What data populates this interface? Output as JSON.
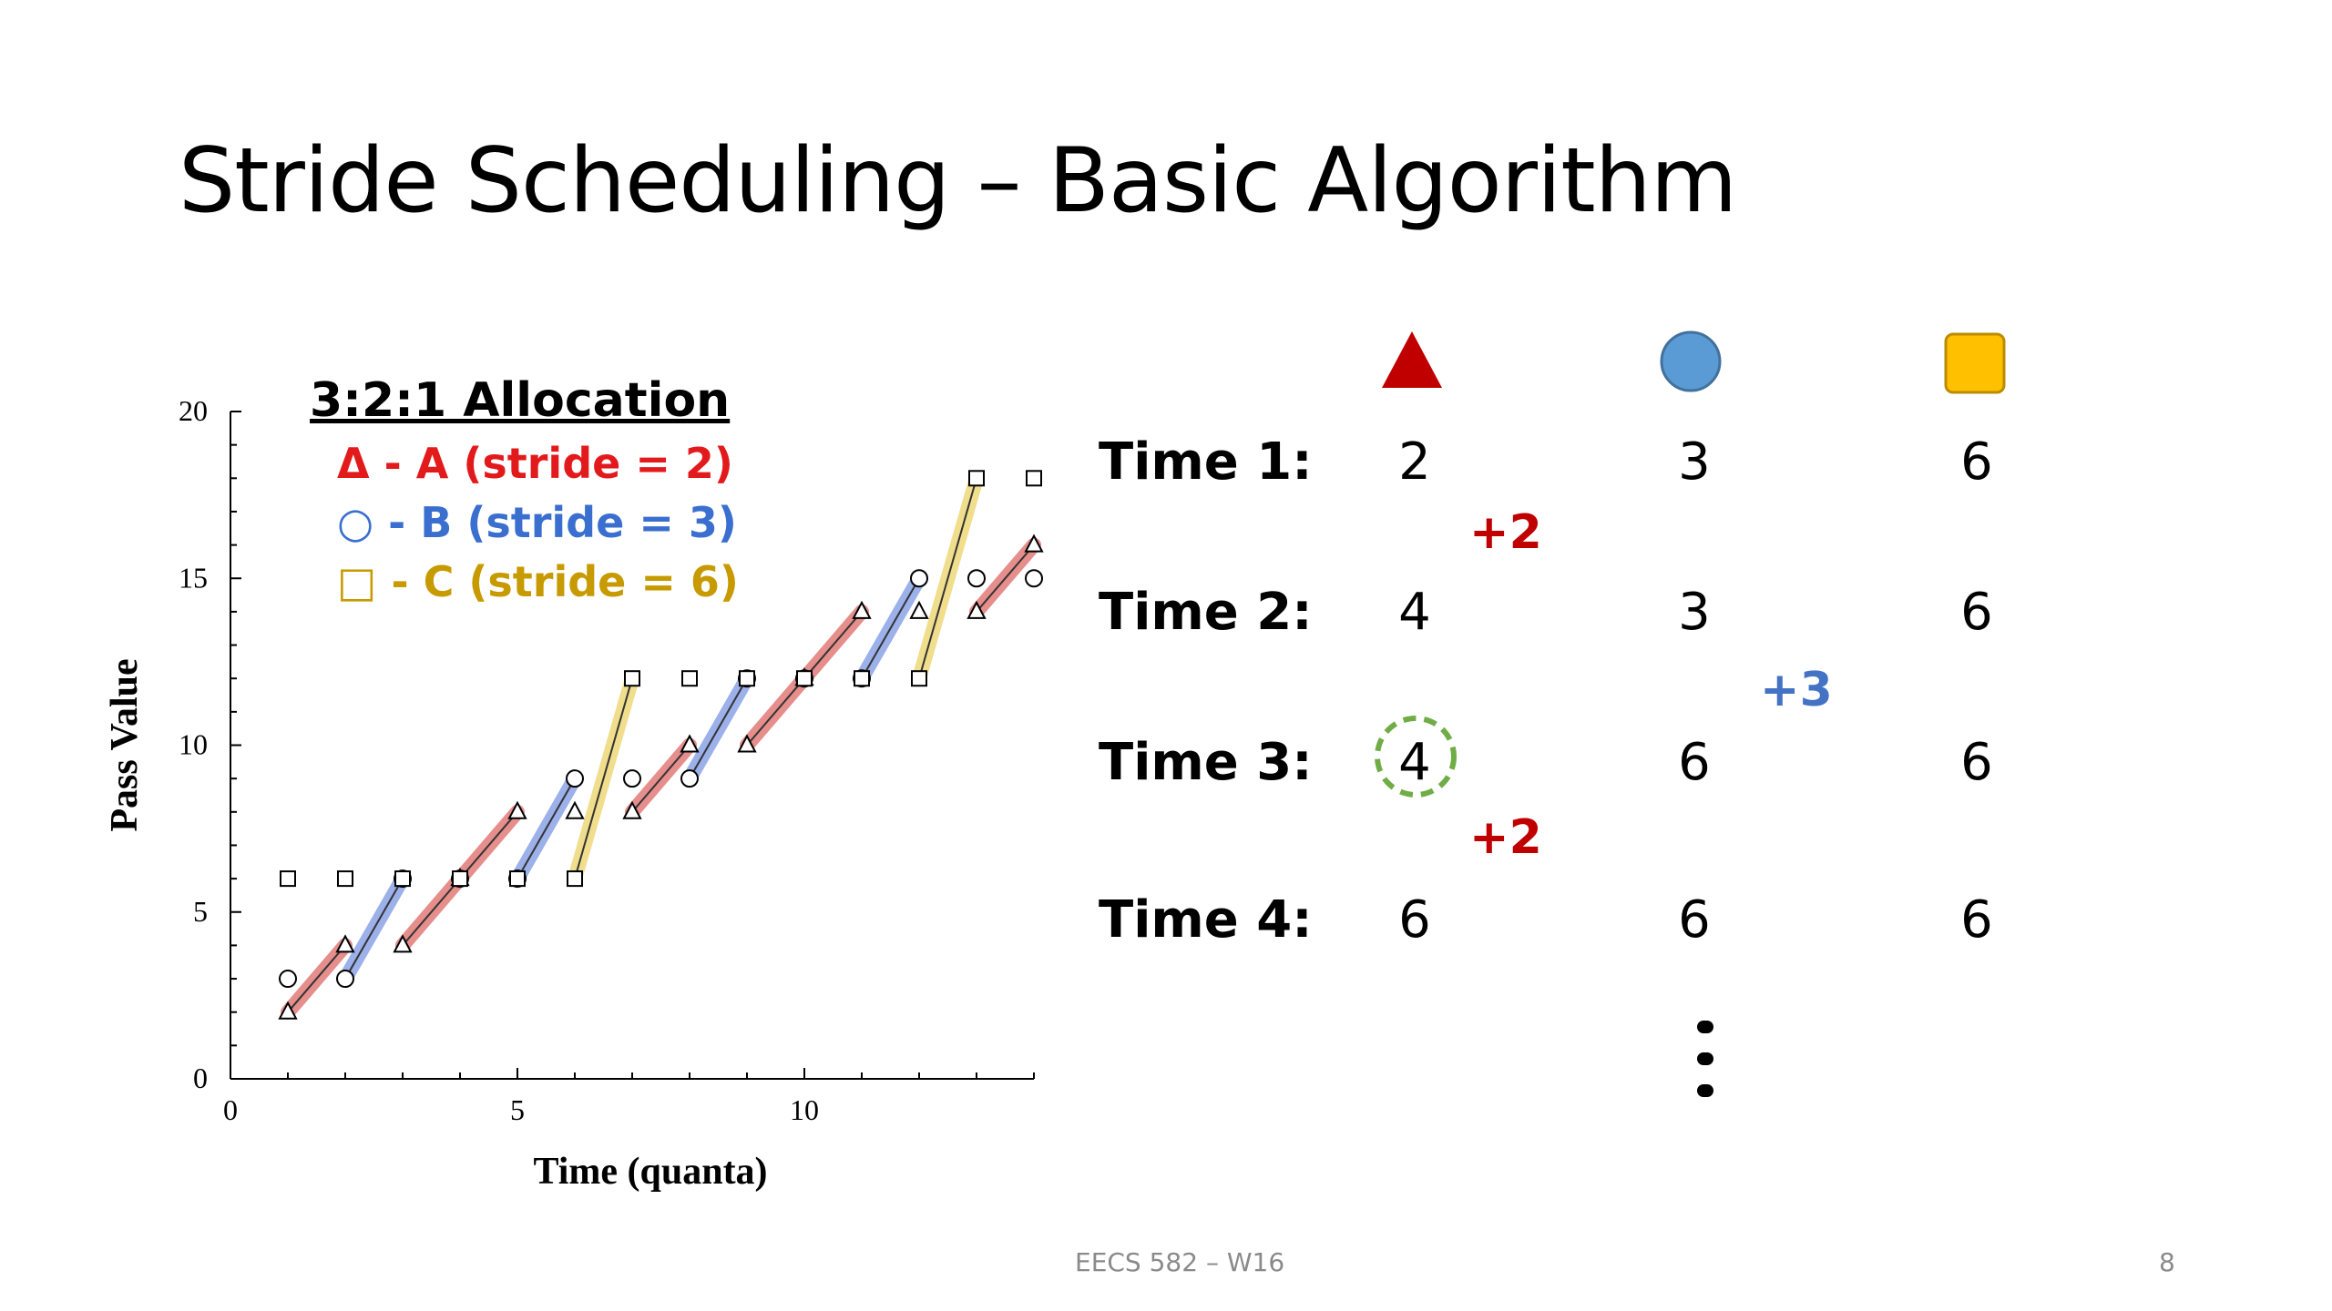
{
  "slide": {
    "title": "Stride Scheduling – Basic Algorithm",
    "footer_center": "EECS 582 – W16",
    "page_number": "8"
  },
  "legend": {
    "title": "3:2:1 Allocation",
    "items": [
      {
        "symbol": "Δ",
        "text": " - A (stride = 2)",
        "color": "#e31a1c"
      },
      {
        "symbol": "○",
        "text": " - B (stride = 3)",
        "color": "#3a6fcf"
      },
      {
        "symbol": "□",
        "text": " - C (stride = 6)",
        "color": "#c79a00"
      }
    ]
  },
  "chart_data": {
    "type": "scatter",
    "xlabel": "Time (quanta)",
    "ylabel": "Pass Value",
    "xlim": [
      0,
      14
    ],
    "ylim": [
      0,
      20
    ],
    "x_ticks": [
      0,
      5,
      10
    ],
    "y_ticks": [
      0,
      5,
      10,
      15,
      20
    ],
    "series": [
      {
        "name": "A (stride = 2)",
        "marker": "triangle",
        "color": "#d0312d",
        "points": [
          [
            1,
            2
          ],
          [
            2,
            4
          ],
          [
            3,
            4
          ],
          [
            4,
            6
          ],
          [
            5,
            8
          ],
          [
            6,
            8
          ],
          [
            7,
            8
          ],
          [
            8,
            10
          ],
          [
            9,
            10
          ],
          [
            10,
            12
          ],
          [
            11,
            14
          ],
          [
            12,
            14
          ],
          [
            13,
            14
          ],
          [
            14,
            16
          ]
        ],
        "segments": [
          [
            [
              1,
              2
            ],
            [
              2,
              4
            ]
          ],
          [
            [
              3,
              4
            ],
            [
              4,
              6
            ]
          ],
          [
            [
              4,
              6
            ],
            [
              5,
              8
            ]
          ],
          [
            [
              7,
              8
            ],
            [
              8,
              10
            ]
          ],
          [
            [
              9,
              10
            ],
            [
              10,
              12
            ]
          ],
          [
            [
              10,
              12
            ],
            [
              11,
              14
            ]
          ],
          [
            [
              13,
              14
            ],
            [
              14,
              16
            ]
          ]
        ]
      },
      {
        "name": "B (stride = 3)",
        "marker": "circle",
        "color": "#4a6fd8",
        "points": [
          [
            1,
            3
          ],
          [
            2,
            3
          ],
          [
            3,
            6
          ],
          [
            4,
            6
          ],
          [
            5,
            6
          ],
          [
            6,
            9
          ],
          [
            7,
            9
          ],
          [
            8,
            9
          ],
          [
            9,
            12
          ],
          [
            10,
            12
          ],
          [
            11,
            12
          ],
          [
            12,
            15
          ],
          [
            13,
            15
          ],
          [
            14,
            15
          ]
        ],
        "segments": [
          [
            [
              2,
              3
            ],
            [
              3,
              6
            ]
          ],
          [
            [
              5,
              6
            ],
            [
              6,
              9
            ]
          ],
          [
            [
              8,
              9
            ],
            [
              9,
              12
            ]
          ],
          [
            [
              11,
              12
            ],
            [
              12,
              15
            ]
          ]
        ]
      },
      {
        "name": "C (stride = 6)",
        "marker": "square",
        "color": "#e3c230",
        "points": [
          [
            1,
            6
          ],
          [
            2,
            6
          ],
          [
            3,
            6
          ],
          [
            4,
            6
          ],
          [
            5,
            6
          ],
          [
            6,
            6
          ],
          [
            7,
            12
          ],
          [
            8,
            12
          ],
          [
            9,
            12
          ],
          [
            10,
            12
          ],
          [
            11,
            12
          ],
          [
            12,
            12
          ],
          [
            13,
            18
          ],
          [
            14,
            18
          ]
        ],
        "segments": [
          [
            [
              6,
              6
            ],
            [
              7,
              12
            ]
          ],
          [
            [
              12,
              12
            ],
            [
              13,
              18
            ]
          ]
        ]
      }
    ]
  },
  "table": {
    "header_icons": [
      {
        "icon": "triangle-icon",
        "color": "#c00000"
      },
      {
        "icon": "circle-icon",
        "color": "#5b9bd5"
      },
      {
        "icon": "square-icon",
        "color": "#ffc000"
      }
    ],
    "rows": [
      {
        "label": "Time 1:",
        "values": [
          "2",
          "3",
          "6"
        ]
      },
      {
        "label": "Time 2:",
        "values": [
          "4",
          "3",
          "6"
        ]
      },
      {
        "label": "Time 3:",
        "values": [
          "4",
          "6",
          "6"
        ]
      },
      {
        "label": "Time 4:",
        "values": [
          "6",
          "6",
          "6"
        ]
      }
    ],
    "deltas": [
      {
        "text": "+2",
        "color": "#c00000"
      },
      {
        "text": "+3",
        "color": "#4472c4"
      },
      {
        "text": "+2",
        "color": "#c00000"
      }
    ],
    "highlight_color": "#70ad47"
  }
}
